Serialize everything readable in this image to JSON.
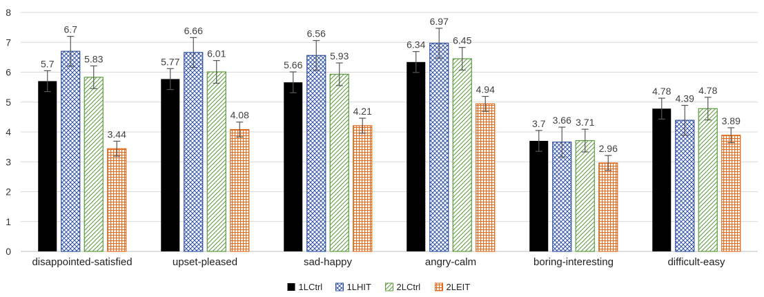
{
  "chart_data": {
    "type": "bar",
    "title": "",
    "xlabel": "",
    "ylabel": "",
    "ylim": [
      0,
      8
    ],
    "yticks": [
      0,
      1,
      2,
      3,
      4,
      5,
      6,
      7,
      8
    ],
    "grid": "horizontal",
    "legend_position": "bottom",
    "categories": [
      "disappointed-satisfied",
      "upset-pleased",
      "sad-happy",
      "angry-calm",
      "boring-interesting",
      "difficult-easy"
    ],
    "series": [
      {
        "name": "1LCtrl",
        "values": [
          5.7,
          5.77,
          5.66,
          6.34,
          3.7,
          4.78
        ],
        "errors": [
          0.35,
          0.35,
          0.35,
          0.35,
          0.35,
          0.35
        ],
        "color": "#000000",
        "pattern": "solid"
      },
      {
        "name": "1LHIT",
        "values": [
          6.7,
          6.66,
          6.56,
          6.97,
          3.66,
          4.39
        ],
        "errors": [
          0.5,
          0.5,
          0.5,
          0.5,
          0.5,
          0.5
        ],
        "color": "#2e4fa3",
        "pattern": "crosshatch"
      },
      {
        "name": "2LCtrl",
        "values": [
          5.83,
          6.01,
          5.93,
          6.45,
          3.71,
          4.78
        ],
        "errors": [
          0.38,
          0.38,
          0.38,
          0.38,
          0.38,
          0.38
        ],
        "color": "#5a9a3c",
        "pattern": "diagonal"
      },
      {
        "name": "2LEIT",
        "values": [
          3.44,
          4.08,
          4.21,
          4.94,
          2.96,
          3.89
        ],
        "errors": [
          0.25,
          0.25,
          0.25,
          0.25,
          0.25,
          0.25
        ],
        "color": "#e06b1e",
        "pattern": "grid"
      }
    ]
  }
}
